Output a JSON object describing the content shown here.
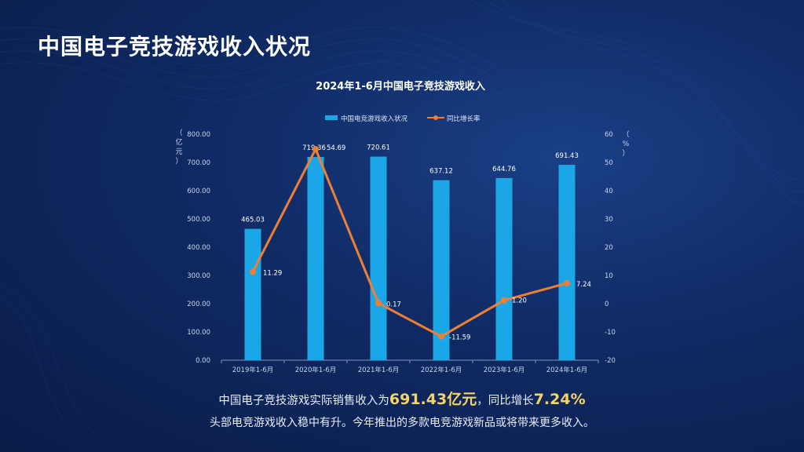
{
  "page": {
    "title": "中国电子竞技游戏收入状况"
  },
  "summary": {
    "line1_prefix": "中国电子竞技游戏实际销售收入为",
    "line1_value": "691.43亿元",
    "line1_mid": "，同比增长",
    "line1_rate": "7.24%",
    "line2": "头部电竞游戏收入稳中有升。今年推出的多款电竞游戏新品或将带来更多收入。"
  },
  "colors": {
    "bar": "#1ba6e8",
    "line": "#ef7f35",
    "highlight": "#f6d365"
  },
  "chart_data": {
    "type": "bar",
    "title": "2024年1-6月中国电子竞技游戏收入",
    "categories": [
      "2019年1-6月",
      "2020年1-6月",
      "2021年1-6月",
      "2022年1-6月",
      "2023年1-6月",
      "2024年1-6月"
    ],
    "series": [
      {
        "name": "中国电竞游戏收入状况",
        "type": "bar",
        "axis": "left",
        "values": [
          465.03,
          719.36,
          720.61,
          637.12,
          644.76,
          691.43
        ],
        "labels": [
          "465.03",
          "719.36",
          "720.61",
          "637.12",
          "644.76",
          "691.43"
        ]
      },
      {
        "name": "同比增长率",
        "type": "line",
        "axis": "right",
        "values": [
          11.29,
          54.69,
          0.17,
          -11.59,
          1.2,
          7.24
        ],
        "labels": [
          "11.29",
          "54.69",
          "0.17",
          "-11.59",
          "1.20",
          "7.24"
        ]
      }
    ],
    "ylabel": "（亿元）",
    "y2label": "（%）",
    "ylim": [
      0,
      800
    ],
    "y2lim": [
      -20,
      60
    ],
    "yticks": [
      "0.00",
      "100.00",
      "200.00",
      "300.00",
      "400.00",
      "500.00",
      "600.00",
      "700.00",
      "800.00"
    ],
    "y2ticks": [
      "-20",
      "-10",
      "0",
      "10",
      "20",
      "30",
      "40",
      "50",
      "60"
    ],
    "legend_position": "top-center",
    "grid": false
  }
}
